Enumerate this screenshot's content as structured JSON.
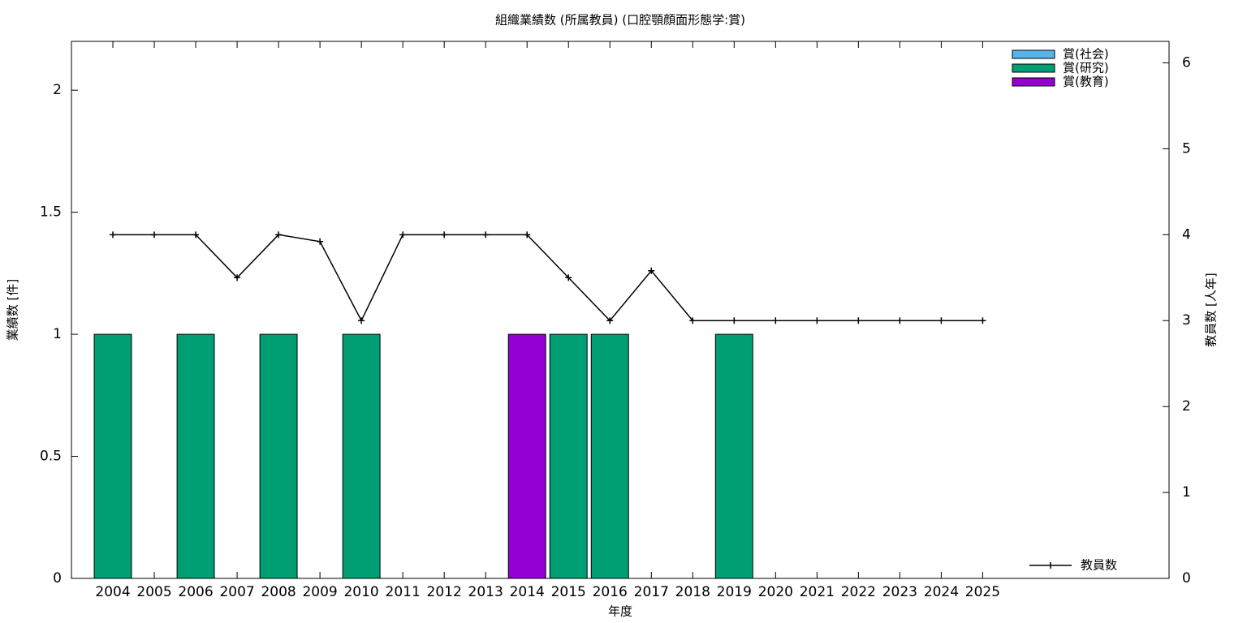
{
  "chart_data": {
    "type": "bar",
    "title": "組織業績数 (所属教員) (口腔顎顔面形態学:賞)",
    "xlabel": "年度",
    "ylabel": "業績数 [件]",
    "y2label": "教員数 [人年]",
    "categories": [
      "2004",
      "2005",
      "2006",
      "2007",
      "2008",
      "2009",
      "2010",
      "2011",
      "2012",
      "2013",
      "2014",
      "2015",
      "2016",
      "2017",
      "2018",
      "2019",
      "2020",
      "2021",
      "2022",
      "2023",
      "2024",
      "2025"
    ],
    "series": [
      {
        "name": "賞(社会)",
        "color": "#56b4e9",
        "values": [
          0,
          0,
          0,
          0,
          0,
          0,
          0,
          0,
          0,
          0,
          0,
          0,
          0,
          0,
          0,
          0,
          0,
          0,
          0,
          0,
          0,
          0
        ]
      },
      {
        "name": "賞(研究)",
        "color": "#009e73",
        "values": [
          1,
          0,
          1,
          0,
          1,
          0,
          1,
          0,
          0,
          0,
          0,
          1,
          1,
          0,
          0,
          1,
          0,
          0,
          0,
          0,
          0,
          0
        ]
      },
      {
        "name": "賞(教育)",
        "color": "#9400d3",
        "values": [
          0,
          0,
          0,
          0,
          0,
          0,
          0,
          0,
          0,
          0,
          1,
          0,
          0,
          0,
          0,
          0,
          0,
          0,
          0,
          0,
          0,
          0
        ]
      },
      {
        "name": "教員数",
        "color": "#000000",
        "axis": "y2",
        "type": "line",
        "values": [
          4,
          4,
          4,
          3.5,
          4,
          3.92,
          3,
          4,
          4,
          4,
          4,
          3.5,
          3,
          3.58,
          3,
          3,
          3,
          3,
          3,
          3,
          3,
          3
        ]
      }
    ],
    "stacked": true,
    "ylim": [
      0,
      2.2
    ],
    "yticks": [
      0,
      0.5,
      1,
      1.5,
      2
    ],
    "y2lim": [
      0,
      6.25
    ],
    "y2ticks": [
      0,
      1,
      2,
      3,
      4,
      5,
      6
    ],
    "legend": "top-right"
  }
}
